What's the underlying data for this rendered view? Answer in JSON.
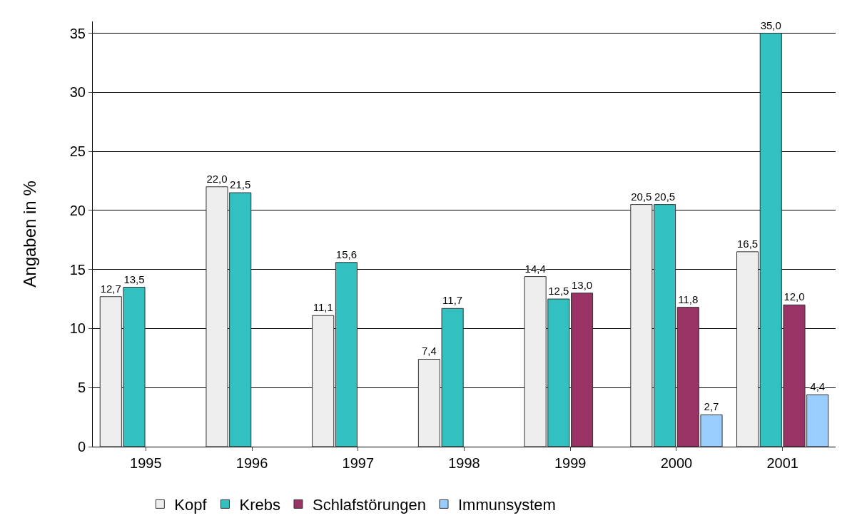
{
  "chart_data": {
    "type": "bar",
    "ylabel": "Angaben in %",
    "categories": [
      "1995",
      "1996",
      "1997",
      "1998",
      "1999",
      "2000",
      "2001"
    ],
    "series": [
      {
        "name": "Kopf",
        "color": "#eeeeee",
        "values": [
          12.7,
          22.0,
          11.1,
          7.4,
          14.4,
          20.5,
          16.5
        ],
        "value_labels": [
          "12,7",
          "22,0",
          "11,1",
          "7,4",
          "14,4",
          "20,5",
          "16,5"
        ]
      },
      {
        "name": "Krebs",
        "color": "#33c0c0",
        "values": [
          13.5,
          21.5,
          15.6,
          11.7,
          12.5,
          20.5,
          35.0
        ],
        "value_labels": [
          "13,5",
          "21,5",
          "15,6",
          "11,7",
          "12,5",
          "20,5",
          "35,0"
        ]
      },
      {
        "name": "Schlafstörungen",
        "color": "#993366",
        "values": [
          null,
          null,
          null,
          null,
          13.0,
          11.8,
          12.0
        ],
        "value_labels": [
          null,
          null,
          null,
          null,
          "13,0",
          "11,8",
          "12,0"
        ]
      },
      {
        "name": "Immunsystem",
        "color": "#99ccff",
        "values": [
          null,
          null,
          null,
          null,
          null,
          2.7,
          4.4
        ],
        "value_labels": [
          null,
          null,
          null,
          null,
          null,
          "2,7",
          "4,4"
        ]
      }
    ],
    "ylim": [
      0,
      36
    ],
    "yticks": [
      0,
      5,
      10,
      15,
      20,
      25,
      30,
      35
    ],
    "grid": "y",
    "legend": "bottom"
  }
}
